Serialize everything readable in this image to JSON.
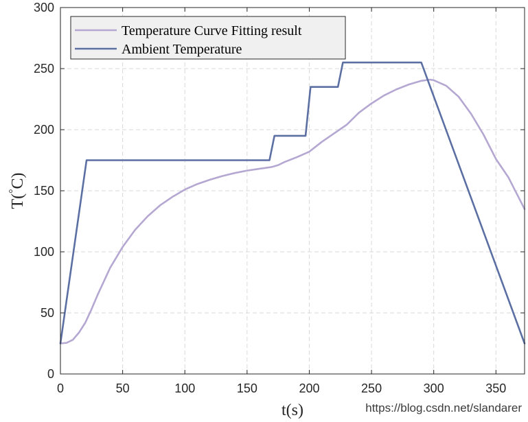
{
  "chart_data": {
    "type": "line",
    "title": "",
    "xlabel": "t(s)",
    "ylabel_main": "T(",
    "ylabel_sup": "°",
    "ylabel_end": "C)",
    "xlim": [
      0,
      373
    ],
    "ylim": [
      0,
      300
    ],
    "xticks": [
      "0",
      "50",
      "100",
      "150",
      "200",
      "250",
      "300",
      "350"
    ],
    "yticks": [
      "0",
      "50",
      "100",
      "150",
      "200",
      "250",
      "300"
    ],
    "grid": true,
    "legend_position": "top-left",
    "series": [
      {
        "name": "Temperature Curve Fitting result",
        "color": "#b4a7d2",
        "x": [
          0,
          5,
          10,
          15,
          20,
          25,
          30,
          40,
          50,
          60,
          70,
          80,
          90,
          100,
          110,
          120,
          130,
          140,
          150,
          160,
          170,
          175,
          180,
          190,
          200,
          205,
          210,
          220,
          230,
          235,
          240,
          250,
          260,
          270,
          280,
          290,
          297,
          300,
          310,
          320,
          330,
          340,
          350,
          360,
          373
        ],
        "values": [
          25,
          25.5,
          28,
          34,
          42,
          53,
          65,
          87,
          104,
          118,
          129,
          138,
          145,
          151,
          155.5,
          159,
          162,
          164.5,
          166.5,
          168,
          169.5,
          171,
          173.5,
          177.5,
          182,
          186,
          190,
          197,
          204,
          209,
          214,
          221.5,
          228,
          233,
          237,
          240,
          241,
          240.5,
          236,
          227,
          213,
          196,
          176,
          161,
          135
        ]
      },
      {
        "name": "Ambient Temperature",
        "color": "#5b6fa3",
        "x": [
          0,
          21,
          165,
          168,
          172,
          194,
          197,
          201,
          220,
          223,
          227,
          285,
          290,
          373
        ],
        "values": [
          25,
          175,
          175,
          175,
          195,
          195,
          195,
          235,
          235,
          235,
          255,
          255,
          255,
          25
        ]
      }
    ]
  },
  "watermark": "https://blog.csdn.net/slandarer"
}
